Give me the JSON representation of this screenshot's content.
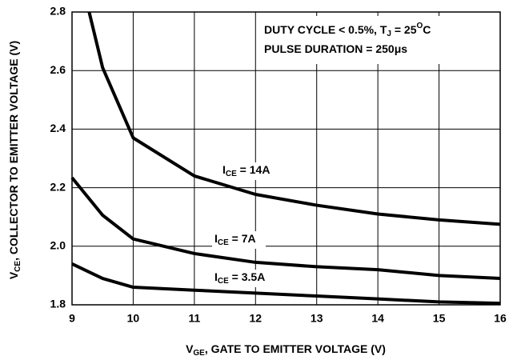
{
  "chart_data": {
    "type": "line",
    "xlabel": [
      "V",
      "GE",
      ", GATE TO EMITTER VOLTAGE (V)"
    ],
    "ylabel": [
      "V",
      "CE",
      ", COLLECTOR TO EMITTER VOLTAGE (V)"
    ],
    "note": [
      [
        "DUTY CYCLE < 0.5%, T",
        "J",
        " = 25",
        "O",
        "C"
      ],
      [
        "PULSE DURATION = 250μs"
      ]
    ],
    "xlim": [
      9,
      16
    ],
    "xticks": [
      9,
      10,
      11,
      12,
      13,
      14,
      15,
      16
    ],
    "ylim": [
      1.8,
      2.8
    ],
    "yticks": [
      1.8,
      {
        "value": 2,
        "label": "2.0"
      },
      2.2,
      2.4,
      2.6,
      2.8
    ],
    "grid": true,
    "series": [
      {
        "label_parts": [
          "I",
          "CE",
          " = 14A"
        ],
        "color": "#000000",
        "x": [
          9.28,
          9.5,
          10,
          11,
          12,
          13,
          14,
          15,
          16
        ],
        "values": [
          2.8,
          2.61,
          2.37,
          2.24,
          2.177,
          2.14,
          2.11,
          2.09,
          2.075
        ]
      },
      {
        "label_parts": [
          "I",
          "CE",
          " = 7A"
        ],
        "color": "#000000",
        "x": [
          9,
          9.5,
          10,
          11,
          12,
          13,
          14,
          15,
          16
        ],
        "values": [
          2.234,
          2.106,
          2.025,
          1.975,
          1.945,
          1.93,
          1.92,
          1.9,
          1.89
        ]
      },
      {
        "label_parts": [
          "I",
          "CE",
          " = 3.5A"
        ],
        "color": "#000000",
        "x": [
          9,
          9.5,
          10,
          11,
          12,
          13,
          14,
          15,
          16
        ],
        "values": [
          1.94,
          1.89,
          1.86,
          1.85,
          1.84,
          1.83,
          1.82,
          1.81,
          1.805
        ]
      }
    ]
  }
}
